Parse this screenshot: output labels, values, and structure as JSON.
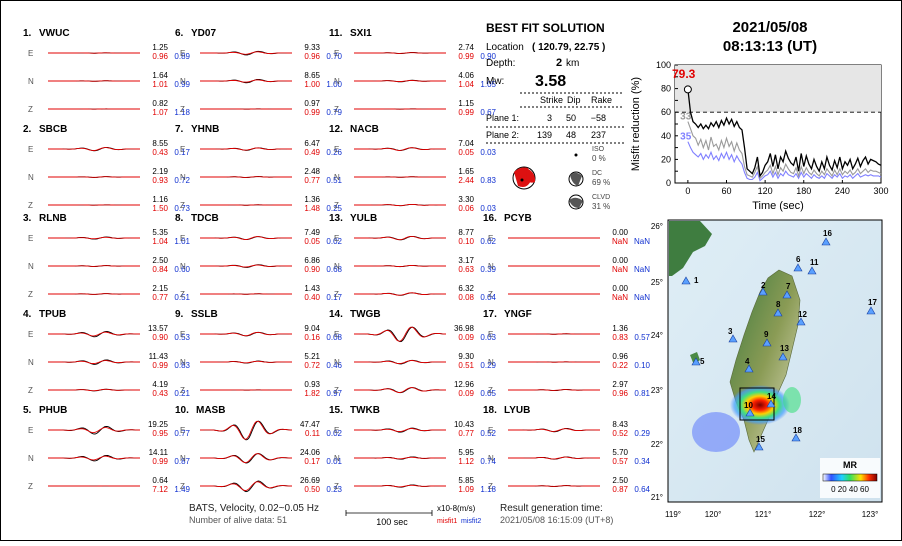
{
  "header": {
    "date": "2021/05/08",
    "time": "08:13:13  (UT)"
  },
  "solution": {
    "title": "BEST FIT SOLUTION",
    "location_label": "Location",
    "location_value": "( 120.79,  22.75 )",
    "depth_label": "Depth:",
    "depth_value": "2",
    "depth_unit": "km",
    "mw_label": "Mw:",
    "mw_value": "3.58",
    "col_headers": [
      "Strike",
      "Dip",
      "Rake"
    ],
    "planes": [
      {
        "label": "Plane 1:",
        "strike": "3",
        "dip": "50",
        "rake": "−58"
      },
      {
        "label": "Plane 2:",
        "strike": "139",
        "dip": "48",
        "rake": "237"
      }
    ],
    "components": [
      {
        "name": "ISO",
        "value": "0 %"
      },
      {
        "name": "DC",
        "value": "69 %"
      },
      {
        "name": "CLVD",
        "value": "31 %"
      }
    ]
  },
  "footer": {
    "method": "BATS, Velocity, 0.02~0.05 Hz",
    "alive": "Number of alive data: 51",
    "scale_label": "100 sec",
    "units": "x10-8(m/s)",
    "misfit1_label": "misfit1",
    "misfit2_label": "misfit2",
    "result_title": "Result generation time:",
    "result_time": "2021/05/08 16:15:09 (UT+8)"
  },
  "stations": [
    {
      "num": "1.",
      "code": "VWUC",
      "traces": [
        [
          "1.25",
          "0.96",
          "0.89"
        ],
        [
          "1.64",
          "1.01",
          "0.99"
        ],
        [
          "0.82",
          "1.07",
          "1.18"
        ]
      ]
    },
    {
      "num": "2.",
      "code": "SBCB",
      "traces": [
        [
          "8.55",
          "0.43",
          "0.17"
        ],
        [
          "2.19",
          "0.93",
          "0.72"
        ],
        [
          "1.16",
          "1.50",
          "0.73"
        ]
      ]
    },
    {
      "num": "3.",
      "code": "RLNB",
      "traces": [
        [
          "5.35",
          "1.04",
          "1.01"
        ],
        [
          "2.50",
          "0.84",
          "0.60"
        ],
        [
          "2.15",
          "0.77",
          "0.51"
        ]
      ]
    },
    {
      "num": "4.",
      "code": "TPUB",
      "traces": [
        [
          "13.57",
          "0.90",
          "0.53"
        ],
        [
          "11.43",
          "0.99",
          "0.83"
        ],
        [
          "4.19",
          "0.43",
          "0.21"
        ]
      ]
    },
    {
      "num": "5.",
      "code": "PHUB",
      "traces": [
        [
          "19.25",
          "0.95",
          "0.77"
        ],
        [
          "14.11",
          "0.99",
          "0.87"
        ],
        [
          "0.64",
          "7.12",
          "1.49"
        ]
      ]
    },
    {
      "num": "6.",
      "code": "YD07",
      "traces": [
        [
          "9.33",
          "0.96",
          "0.70"
        ],
        [
          "8.65",
          "1.00",
          "1.00"
        ],
        [
          "0.97",
          "0.99",
          "0.79"
        ]
      ]
    },
    {
      "num": "7.",
      "code": "YHNB",
      "traces": [
        [
          "6.47",
          "0.49",
          "0.26"
        ],
        [
          "2.48",
          "0.77",
          "0.51"
        ],
        [
          "1.36",
          "1.48",
          "0.25"
        ]
      ]
    },
    {
      "num": "8.",
      "code": "TDCB",
      "traces": [
        [
          "7.49",
          "0.05",
          "0.02"
        ],
        [
          "6.86",
          "0.90",
          "0.68"
        ],
        [
          "1.43",
          "0.40",
          "0.17"
        ]
      ]
    },
    {
      "num": "9.",
      "code": "SSLB",
      "traces": [
        [
          "9.04",
          "0.16",
          "0.08"
        ],
        [
          "5.21",
          "0.72",
          "0.46"
        ],
        [
          "0.93",
          "1.82",
          "0.97"
        ]
      ]
    },
    {
      "num": "10.",
      "code": "MASB",
      "traces": [
        [
          "47.47",
          "0.11",
          "0.02"
        ],
        [
          "24.06",
          "0.17",
          "0.01"
        ],
        [
          "26.69",
          "0.50",
          "0.23"
        ]
      ]
    },
    {
      "num": "11.",
      "code": "SXI1",
      "traces": [
        [
          "2.74",
          "0.99",
          "0.90"
        ],
        [
          "4.06",
          "1.04",
          "1.05"
        ],
        [
          "1.15",
          "0.99",
          "0.67"
        ]
      ]
    },
    {
      "num": "12.",
      "code": "NACB",
      "traces": [
        [
          "7.04",
          "0.05",
          "0.03"
        ],
        [
          "1.65",
          "2.44",
          "0.83"
        ],
        [
          "3.30",
          "0.06",
          "0.03"
        ]
      ]
    },
    {
      "num": "13.",
      "code": "YULB",
      "traces": [
        [
          "8.77",
          "0.10",
          "0.02"
        ],
        [
          "3.17",
          "0.63",
          "0.39"
        ],
        [
          "6.32",
          "0.08",
          "0.04"
        ]
      ]
    },
    {
      "num": "14.",
      "code": "TWGB",
      "traces": [
        [
          "36.98",
          "0.09",
          "0.03"
        ],
        [
          "9.30",
          "0.51",
          "0.29"
        ],
        [
          "12.96",
          "0.09",
          "0.05"
        ]
      ]
    },
    {
      "num": "15.",
      "code": "TWKB",
      "traces": [
        [
          "10.43",
          "0.77",
          "0.52"
        ],
        [
          "5.95",
          "1.12",
          "0.74"
        ],
        [
          "5.85",
          "1.09",
          "1.18"
        ]
      ]
    },
    {
      "num": "16.",
      "code": "PCYB",
      "traces": [
        [
          "0.00",
          "NaN",
          "NaN"
        ],
        [
          "0.00",
          "NaN",
          "NaN"
        ],
        [
          "0.00",
          "NaN",
          "NaN"
        ]
      ]
    },
    {
      "num": "17.",
      "code": "YNGF",
      "traces": [
        [
          "1.36",
          "0.83",
          "0.57"
        ],
        [
          "0.96",
          "0.22",
          "0.10"
        ],
        [
          "2.97",
          "0.96",
          "0.81"
        ]
      ]
    },
    {
      "num": "18.",
      "code": "LYUB",
      "traces": [
        [
          "8.43",
          "0.52",
          "0.29"
        ],
        [
          "5.70",
          "0.57",
          "0.34"
        ],
        [
          "2.50",
          "0.87",
          "0.64"
        ]
      ]
    }
  ],
  "component_labels": [
    "E",
    "N",
    "Z"
  ],
  "chart_data": {
    "type": "line",
    "xlabel": "Time (sec)",
    "ylabel": "Misfit reduction (%)",
    "xlim": [
      -20,
      300
    ],
    "ylim": [
      0,
      100
    ],
    "xticks": [
      0,
      60,
      120,
      180,
      240,
      300
    ],
    "yticks": [
      0,
      10,
      20,
      30,
      40,
      50,
      60,
      70,
      80,
      90,
      100
    ],
    "best_label": "79.3",
    "best_point": {
      "x": 0,
      "y": 79.3
    },
    "threshold": 60,
    "series": [
      {
        "color": "#000000",
        "label": "",
        "x": [
          0,
          4,
          8,
          12,
          16,
          20,
          24,
          28,
          32,
          36,
          40,
          44,
          48,
          52,
          56,
          60,
          64,
          68,
          72,
          76,
          80,
          84,
          88,
          92,
          96,
          100,
          104,
          108,
          112,
          116,
          120,
          124,
          128,
          132,
          136,
          140,
          144,
          148,
          152,
          156,
          160,
          164,
          168,
          172,
          176,
          180,
          184,
          188,
          192,
          196,
          200,
          204,
          208,
          212,
          216,
          220,
          224,
          228,
          232,
          236,
          240,
          244,
          248,
          252,
          256,
          260,
          264,
          268,
          272,
          276,
          280,
          284,
          288,
          292,
          296,
          300
        ],
        "y": [
          79.3,
          60,
          52,
          50,
          47,
          50,
          46,
          49,
          46,
          51,
          48,
          52,
          47,
          53,
          49,
          55,
          50,
          54,
          48,
          52,
          47,
          45,
          30,
          12,
          10,
          8,
          13,
          22,
          6,
          9,
          15,
          18,
          25,
          14,
          24,
          12,
          22,
          18,
          27,
          21,
          17,
          15,
          22,
          10,
          25,
          14,
          23,
          16,
          12,
          20,
          14,
          10,
          18,
          12,
          22,
          15,
          11,
          19,
          13,
          22,
          12,
          18,
          15,
          20,
          12,
          16,
          21,
          14,
          19,
          22,
          16,
          20,
          19,
          18,
          16,
          15
        ]
      },
      {
        "color": "#9a9a9a",
        "label": "33",
        "x": [
          0,
          4,
          8,
          12,
          16,
          20,
          24,
          28,
          32,
          36,
          40,
          44,
          48,
          52,
          56,
          60,
          64,
          68,
          72,
          76,
          80,
          84,
          88,
          92,
          96,
          100,
          104,
          108,
          112,
          116,
          120,
          124,
          128,
          132,
          136,
          140,
          144,
          148,
          152,
          156,
          160,
          164,
          168,
          172,
          176,
          180,
          184,
          188,
          192,
          196,
          200,
          204,
          208,
          212,
          216,
          220,
          224,
          228,
          232,
          236,
          240,
          244,
          248,
          252,
          256,
          260,
          264,
          268,
          272,
          276,
          280,
          284,
          288,
          292,
          296,
          300
        ],
        "y": [
          52,
          46,
          40,
          38,
          32,
          37,
          30,
          36,
          28,
          39,
          31,
          33,
          28,
          36,
          30,
          38,
          31,
          35,
          27,
          34,
          28,
          25,
          14,
          7,
          6,
          5,
          9,
          14,
          4,
          6,
          9,
          11,
          15,
          8,
          14,
          7,
          13,
          10,
          16,
          12,
          9,
          8,
          13,
          6,
          14,
          8,
          13,
          9,
          7,
          11,
          8,
          6,
          10,
          7,
          12,
          9,
          6,
          11,
          7,
          12,
          7,
          10,
          8,
          11,
          7,
          9,
          12,
          8,
          10,
          12,
          9,
          11,
          10,
          10,
          9,
          8
        ]
      },
      {
        "color": "#8080ff",
        "label": "35",
        "x": [
          0,
          4,
          8,
          12,
          16,
          20,
          24,
          28,
          32,
          36,
          40,
          44,
          48,
          52,
          56,
          60,
          64,
          68,
          72,
          76,
          80,
          84,
          88,
          92,
          96,
          100,
          104,
          108,
          112,
          116,
          120,
          124,
          128,
          132,
          136,
          140,
          144,
          148,
          152,
          156,
          160,
          164,
          168,
          172,
          176,
          180,
          184,
          188,
          192,
          196,
          200,
          204,
          208,
          212,
          216,
          220,
          224,
          228,
          232,
          236,
          240,
          244,
          248,
          252,
          256,
          260,
          264,
          268,
          272,
          276,
          280,
          284,
          288,
          292,
          296,
          300
        ],
        "y": [
          35,
          30,
          26,
          24,
          22,
          25,
          20,
          24,
          21,
          26,
          20,
          23,
          19,
          25,
          21,
          26,
          20,
          24,
          18,
          23,
          19,
          16,
          9,
          4,
          3,
          3,
          5,
          9,
          2,
          4,
          6,
          7,
          10,
          5,
          9,
          4,
          8,
          6,
          10,
          7,
          6,
          5,
          8,
          4,
          9,
          5,
          8,
          6,
          4,
          7,
          5,
          4,
          6,
          4,
          8,
          6,
          4,
          7,
          5,
          8,
          4,
          6,
          5,
          7,
          4,
          6,
          8,
          5,
          6,
          7,
          6,
          7,
          6,
          6,
          6,
          5
        ]
      }
    ]
  },
  "map": {
    "lon_ticks": [
      "119°",
      "120°",
      "121°",
      "122°",
      "123°"
    ],
    "lat_ticks": [
      "26°",
      "25°",
      "24°",
      "23°",
      "22°",
      "21°"
    ],
    "colorbar_title": "MR",
    "colorbar_ticks": "0 20 40 60",
    "station_labels": [
      "1",
      "2",
      "3",
      "4",
      "5",
      "6",
      "7",
      "8",
      "9",
      "10",
      "11",
      "12",
      "13",
      "14",
      "15",
      "16",
      "17",
      "18"
    ]
  }
}
